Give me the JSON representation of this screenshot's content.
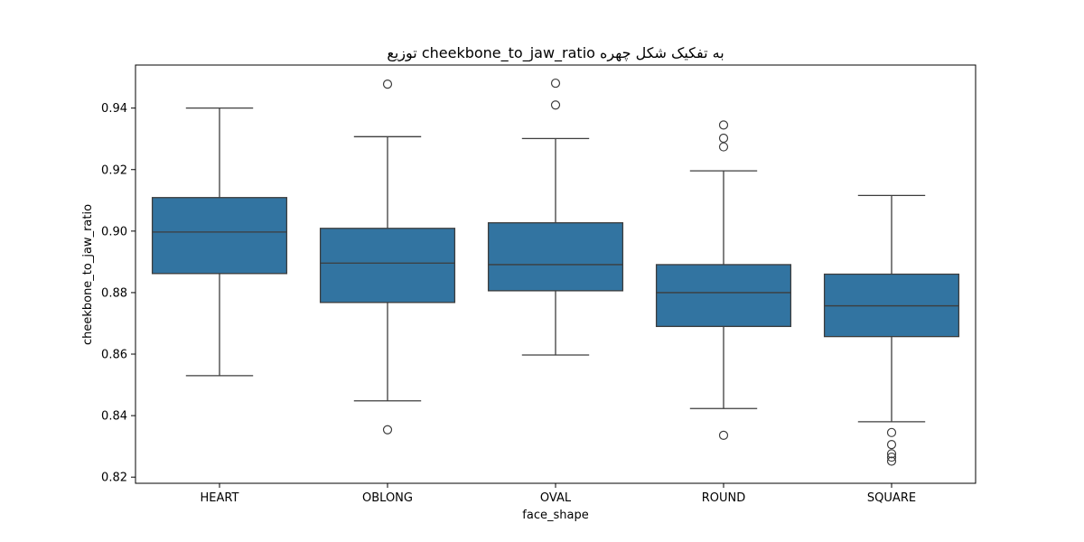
{
  "chart_data": {
    "type": "box",
    "title": "توزیع cheekbone_to_jaw_ratio به تفکیک شکل چهره",
    "xlabel": "face_shape",
    "ylabel": "cheekbone_to_jaw_ratio",
    "ylim": [
      0.818,
      0.954
    ],
    "yticks": [
      "0.82",
      "0.84",
      "0.86",
      "0.88",
      "0.90",
      "0.92",
      "0.94"
    ],
    "yticks_values": [
      0.82,
      0.84,
      0.86,
      0.88,
      0.9,
      0.92,
      0.94
    ],
    "grid": false,
    "box_color": "#3274a1",
    "categories": [
      "HEART",
      "OBLONG",
      "OVAL",
      "ROUND",
      "SQUARE"
    ],
    "boxes": [
      {
        "category": "HEART",
        "whisker_low": 0.853,
        "q1": 0.8862,
        "median": 0.8997,
        "q3": 0.9109,
        "whisker_high": 0.94,
        "outliers": []
      },
      {
        "category": "OBLONG",
        "whisker_low": 0.8448,
        "q1": 0.8768,
        "median": 0.8896,
        "q3": 0.9009,
        "whisker_high": 0.9307,
        "outliers": [
          0.9478,
          0.8354
        ]
      },
      {
        "category": "OVAL",
        "whisker_low": 0.8597,
        "q1": 0.8806,
        "median": 0.8891,
        "q3": 0.9027,
        "whisker_high": 0.9301,
        "outliers": [
          0.9481,
          0.941
        ]
      },
      {
        "category": "ROUND",
        "whisker_low": 0.8423,
        "q1": 0.869,
        "median": 0.88,
        "q3": 0.8891,
        "whisker_high": 0.9196,
        "outliers": [
          0.9345,
          0.9302,
          0.9274,
          0.8336
        ]
      },
      {
        "category": "SQUARE",
        "whisker_low": 0.838,
        "q1": 0.8657,
        "median": 0.8757,
        "q3": 0.886,
        "whisker_high": 0.9116,
        "outliers": [
          0.8345,
          0.8306,
          0.8276,
          0.8265,
          0.8252
        ]
      }
    ]
  }
}
